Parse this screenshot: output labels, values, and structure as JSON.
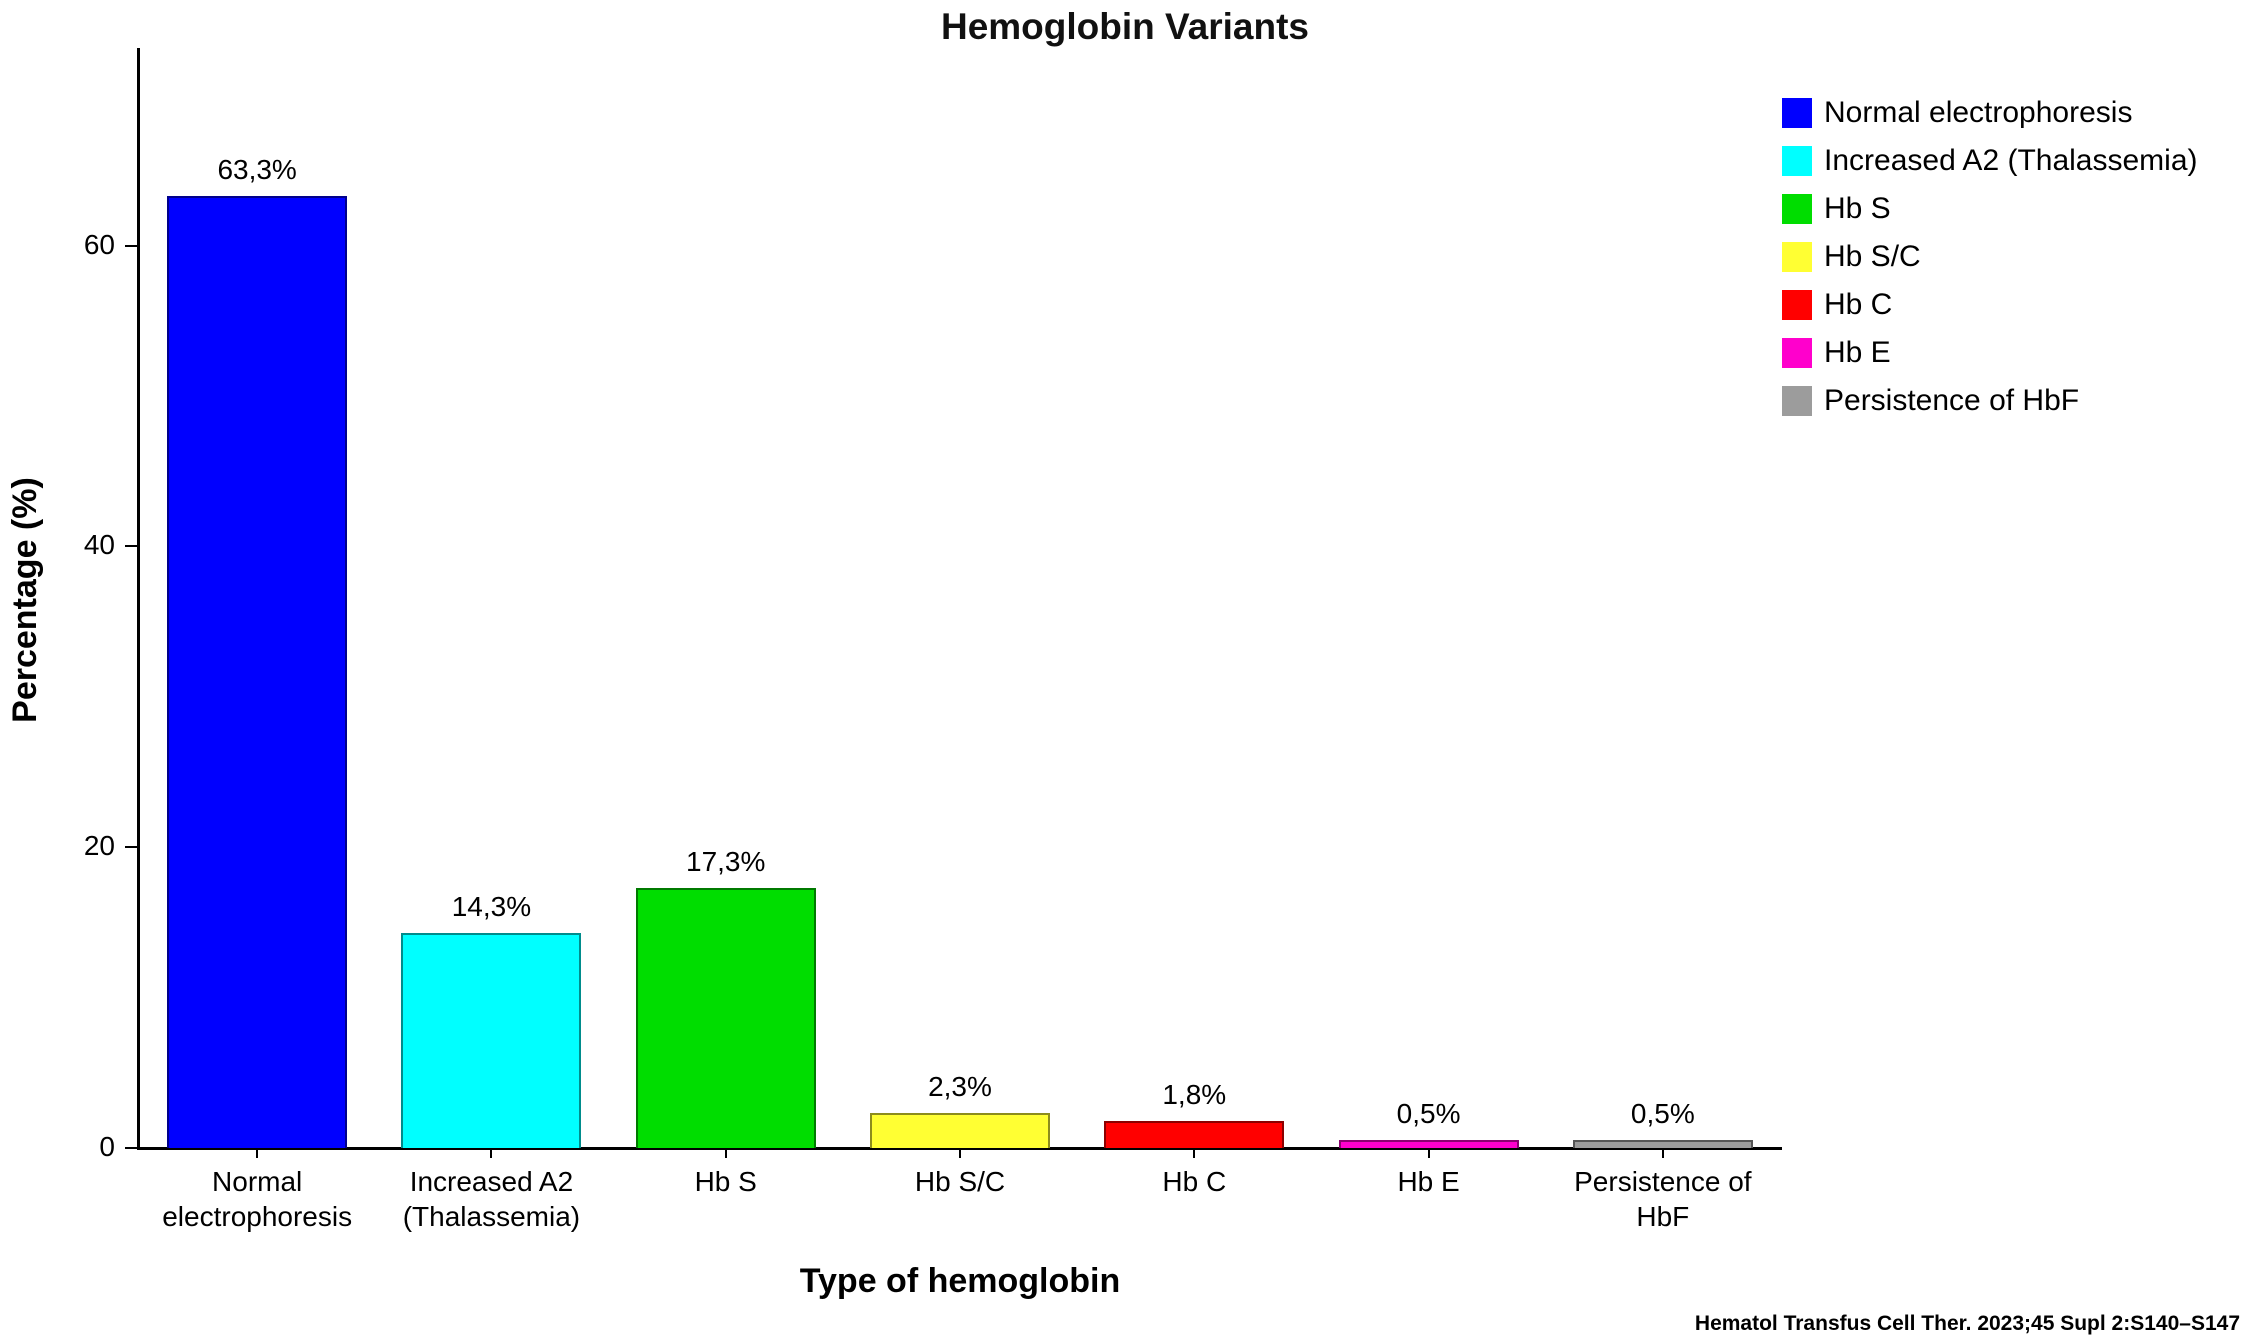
{
  "title": "Hemoglobin Variants",
  "chart_data": {
    "type": "bar",
    "title": "Hemoglobin Variants",
    "xlabel": "Type of hemoglobin",
    "ylabel": "Percentage (%)",
    "categories": [
      "Normal\nelectrophoresis",
      "Increased A2\n(Thalassemia)",
      "Hb S",
      "Hb S/C",
      "Hb C",
      "Hb E",
      "Persistence of\nHbF"
    ],
    "values": [
      63.3,
      14.3,
      17.3,
      2.3,
      1.8,
      0.5,
      0.5
    ],
    "value_labels": [
      "63,3%",
      "14,3%",
      "17,3%",
      "2,3%",
      "1,8%",
      "0,5%",
      "0,5%"
    ],
    "colors": [
      "#0000ff",
      "#00ffff",
      "#00dd00",
      "#ffff33",
      "#ff0000",
      "#ff00cc",
      "#9c9c9c"
    ],
    "ylim": [
      0,
      73
    ],
    "yticks": [
      0,
      20,
      40,
      60
    ],
    "grid": false,
    "legend_position": "top-right",
    "legend": [
      {
        "label": "Normal electrophoresis",
        "color": "#0000ff"
      },
      {
        "label": "Increased A2 (Thalassemia)",
        "color": "#00ffff"
      },
      {
        "label": "Hb S",
        "color": "#00dd00"
      },
      {
        "label": "Hb S/C",
        "color": "#ffff33"
      },
      {
        "label": "Hb C",
        "color": "#ff0000"
      },
      {
        "label": "Hb E",
        "color": "#ff00cc"
      },
      {
        "label": "Persistence of HbF",
        "color": "#9c9c9c"
      }
    ]
  },
  "footer": {
    "citation": "Hematol Transfus Cell Ther. 2023;45 Supl 2:S140–S147"
  }
}
